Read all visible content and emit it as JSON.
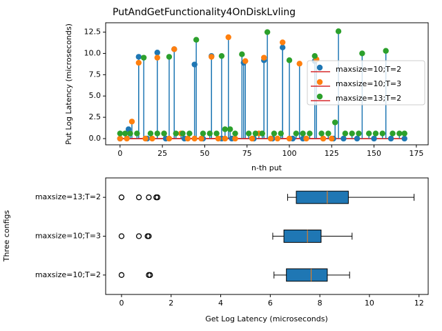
{
  "chart_data": [
    {
      "type": "stem",
      "title": "PutAndGetFunctionality4OnDiskLvling",
      "x_label": "n-th put",
      "y_label": "Put Log Latency (microseconds)",
      "xlim": [
        -8.5,
        182
      ],
      "ylim": [
        -0.73,
        13.6
      ],
      "xticks": [
        0,
        25,
        50,
        75,
        100,
        125,
        150,
        175
      ],
      "yticks": [
        {
          "value": 0,
          "label": "0.0"
        },
        2.5,
        {
          "value": 5,
          "label": "5.0"
        },
        7.5,
        {
          "value": 10,
          "label": "10.0"
        },
        12.5
      ],
      "stem_color": "#1f77b4",
      "baseline_color": "#d62728",
      "legend": "right",
      "series": [
        {
          "name": "maxsize=10;T=2",
          "color": "#1f77b4",
          "x": [
            0,
            5,
            11,
            16,
            22,
            27,
            32,
            38,
            44,
            49,
            54,
            60,
            66,
            73,
            79,
            85,
            90,
            96,
            102,
            108,
            115,
            120,
            126,
            132,
            140,
            150,
            160,
            168
          ],
          "values": [
            0,
            1.1,
            9.6,
            0,
            10.1,
            0,
            10.5,
            0,
            8.7,
            0,
            9.7,
            0,
            0,
            8.9,
            0,
            9.2,
            0,
            10.7,
            0,
            0,
            9.1,
            0,
            0,
            0,
            0,
            0,
            0,
            0
          ]
        },
        {
          "name": "maxsize=10;T=3",
          "color": "#ff7f0e",
          "x": [
            0,
            4,
            7,
            11,
            15,
            19,
            22,
            26,
            29,
            32,
            36,
            40,
            44,
            48,
            54,
            58,
            62,
            64,
            68,
            74,
            78,
            82,
            85,
            89,
            93,
            96,
            100,
            106,
            110,
            116,
            120,
            125
          ],
          "values": [
            0,
            0,
            2.0,
            8.9,
            0,
            0,
            9.5,
            0.6,
            0,
            10.5,
            0.6,
            0,
            0,
            0,
            9.6,
            0,
            0,
            11.9,
            0,
            9.1,
            0,
            0.6,
            9.5,
            0,
            0,
            11.3,
            0,
            8.8,
            0,
            9.3,
            0,
            0
          ]
        },
        {
          "name": "maxsize=13;T=2",
          "color": "#2ca02c",
          "x": [
            0,
            3,
            6,
            10,
            14,
            18,
            22,
            26,
            29,
            33,
            37,
            41,
            45,
            49,
            53,
            57,
            60,
            62,
            65,
            68,
            72,
            76,
            80,
            84,
            87,
            91,
            95,
            100,
            104,
            108,
            112,
            115,
            119,
            123,
            127,
            129,
            133,
            137,
            141,
            143,
            147,
            151,
            155,
            157,
            161,
            165,
            168
          ],
          "values": [
            0.6,
            0.6,
            0.6,
            0.6,
            9.5,
            0.6,
            0.6,
            0.6,
            9.6,
            0.6,
            0.6,
            0.6,
            11.6,
            0.6,
            0.6,
            0.6,
            9.7,
            1.1,
            1.1,
            0.6,
            9.9,
            0.6,
            0.6,
            0.6,
            12.5,
            0.6,
            0.6,
            9.2,
            0.6,
            0.6,
            0.6,
            9.7,
            0.6,
            0.6,
            1.9,
            12.6,
            0.6,
            0.6,
            0.6,
            10.0,
            0.6,
            0.6,
            0.6,
            10.3,
            0.6,
            0.6,
            0.6
          ]
        }
      ]
    },
    {
      "type": "boxplot",
      "x_label": "Get Log Latency (microseconds)",
      "y_label": "Three configs",
      "xlim": [
        -0.64,
        12.37
      ],
      "xticks": [
        0,
        2,
        4,
        6,
        8,
        10,
        12
      ],
      "box_color": "#1f77b4",
      "median_color": "#ff7f0e",
      "categories": [
        "maxsize=10;T=2",
        "maxsize=10;T=3",
        "maxsize=13;T=2"
      ],
      "boxes": [
        {
          "whislo": 6.15,
          "q1": 6.65,
          "med": 7.65,
          "q3": 8.3,
          "whishi": 9.2,
          "fliers": [
            0,
            1.1,
            1.15
          ]
        },
        {
          "whislo": 6.1,
          "q1": 6.55,
          "med": 7.5,
          "q3": 8.05,
          "whishi": 9.3,
          "fliers": [
            0,
            0.7,
            1.05,
            1.1
          ]
        },
        {
          "whislo": 6.7,
          "q1": 7.05,
          "med": 8.3,
          "q3": 9.15,
          "whishi": 11.8,
          "fliers": [
            0,
            0.7,
            1.1,
            1.4,
            1.45
          ]
        }
      ]
    }
  ]
}
